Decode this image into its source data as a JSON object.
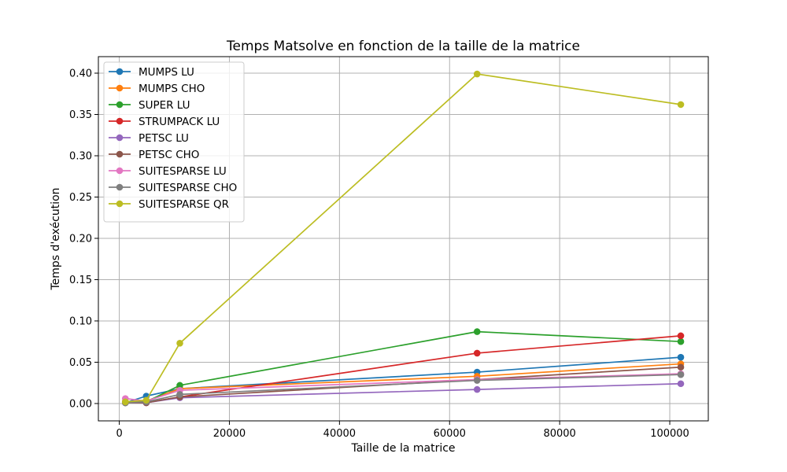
{
  "chart_data": {
    "type": "line",
    "title": "Temps Matsolve en fonction de la taille de la matrice",
    "xlabel": "Taille de la matrice",
    "ylabel": "Temps d'exécution",
    "xlim": [
      -3800,
      107000
    ],
    "ylim": [
      -0.021,
      0.42
    ],
    "xticks": [
      0,
      20000,
      40000,
      60000,
      80000,
      100000
    ],
    "xtick_labels": [
      "0",
      "20000",
      "40000",
      "60000",
      "80000",
      "100000"
    ],
    "yticks": [
      0,
      0.05,
      0.1,
      0.15,
      0.2,
      0.25,
      0.3,
      0.35,
      0.4
    ],
    "ytick_labels": [
      "0.00",
      "0.05",
      "0.10",
      "0.15",
      "0.20",
      "0.25",
      "0.30",
      "0.35",
      "0.40"
    ],
    "grid": true,
    "legend_position": "upper-left",
    "x": [
      1100,
      4900,
      11000,
      65000,
      102000
    ],
    "series": [
      {
        "name": "MUMPS LU",
        "color": "#1f77b4",
        "values": [
          0.001,
          0.009,
          0.018,
          0.038,
          0.056
        ]
      },
      {
        "name": "MUMPS CHO",
        "color": "#ff7f0e",
        "values": [
          0.002,
          0.003,
          0.018,
          0.033,
          0.048
        ]
      },
      {
        "name": "SUPER LU",
        "color": "#2ca02c",
        "values": [
          0.001,
          0.002,
          0.022,
          0.087,
          0.075
        ]
      },
      {
        "name": "STRUMPACK LU",
        "color": "#d62728",
        "values": [
          0.002,
          0.001,
          0.008,
          0.061,
          0.082
        ]
      },
      {
        "name": "PETSC LU",
        "color": "#9467bd",
        "values": [
          0.001,
          0.001,
          0.007,
          0.017,
          0.024
        ]
      },
      {
        "name": "PETSC CHO",
        "color": "#8c564b",
        "values": [
          0.001,
          0.001,
          0.008,
          0.029,
          0.044
        ]
      },
      {
        "name": "SUITESPARSE LU",
        "color": "#e377c2",
        "values": [
          0.006,
          0.003,
          0.016,
          0.029,
          0.036
        ]
      },
      {
        "name": "SUITESPARSE CHO",
        "color": "#7f7f7f",
        "values": [
          0.001,
          0.002,
          0.011,
          0.028,
          0.035
        ]
      },
      {
        "name": "SUITESPARSE QR",
        "color": "#bcbd22",
        "values": [
          0.002,
          0.004,
          0.073,
          0.399,
          0.362
        ]
      }
    ]
  }
}
